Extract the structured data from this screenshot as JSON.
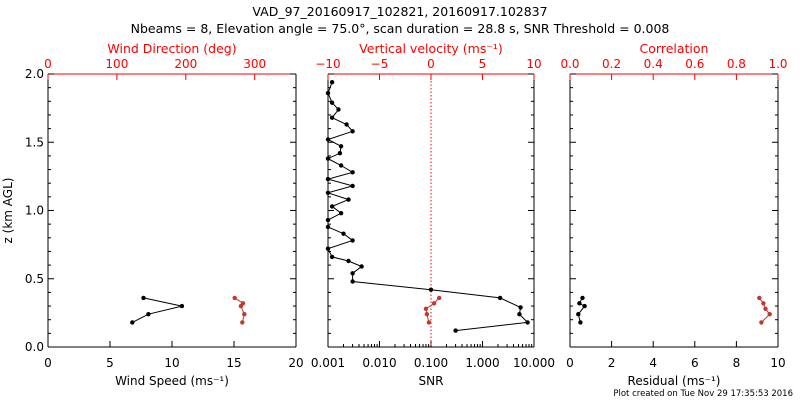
{
  "title_line1": "VAD_97_20160917_102821, 20160917.102837",
  "title_line2": "Nbeams = 8, Elevation angle = 75.0°, scan duration = 28.8 s, SNR Threshold = 0.008",
  "footer": "Plot created on Tue Nov 29 17:35:53 2016",
  "colors": {
    "axis": "#000000",
    "accent": "#ff0000",
    "red_series": "#c0392b",
    "black_series": "#000000"
  },
  "chart_data": [
    {
      "type": "line",
      "panel": "wind",
      "ylabel": "z (km AGL)",
      "ylim": [
        0,
        2
      ],
      "yticks": [
        0.0,
        0.5,
        1.0,
        1.5,
        2.0
      ],
      "ytick_labels": [
        "0.0",
        "0.5",
        "1.0",
        "1.5",
        "2.0"
      ],
      "bottom_axis": {
        "label": "Wind Speed (ms⁻¹)",
        "range": [
          0,
          20
        ],
        "ticks": [
          0,
          5,
          10,
          15,
          20
        ],
        "tick_labels": [
          "0",
          "5",
          "10",
          "15",
          "20"
        ]
      },
      "top_axis": {
        "label": "Wind Direction (deg)",
        "range": [
          0,
          360
        ],
        "ticks": [
          0,
          100,
          200,
          300
        ],
        "tick_labels": [
          "0",
          "100",
          "200",
          "300"
        ]
      },
      "series": [
        {
          "axis": "bottom",
          "color": "#000000",
          "x": [
            6.8,
            8.1,
            10.8,
            7.7
          ],
          "y": [
            0.18,
            0.24,
            0.3,
            0.36
          ]
        },
        {
          "axis": "top",
          "color": "#c0392b",
          "x": [
            282,
            285,
            280,
            283,
            271
          ],
          "y": [
            0.18,
            0.24,
            0.3,
            0.32,
            0.36
          ]
        }
      ]
    },
    {
      "type": "line",
      "panel": "snr",
      "ylim": [
        0,
        2
      ],
      "bottom_axis": {
        "label": "SNR",
        "scale": "log",
        "range": [
          0.001,
          10
        ],
        "ticks": [
          0.001,
          0.01,
          0.1,
          1,
          10
        ],
        "tick_labels": [
          "0.001",
          "0.010",
          "0.100",
          "1.000",
          "10.000"
        ]
      },
      "top_axis": {
        "label": "Vertical velocity (ms⁻¹)",
        "range": [
          -10,
          10
        ],
        "ticks": [
          -10,
          -5,
          0,
          5,
          10
        ],
        "tick_labels": [
          "−10",
          "−5",
          "0",
          "5",
          "10"
        ],
        "reference_line": 0
      },
      "series": [
        {
          "axis": "bottom",
          "color": "#000000",
          "x": [
            0.3,
            7.5,
            5.2,
            5.5,
            2.2,
            0.1,
            0.003,
            0.003,
            0.0045,
            0.0025,
            0.0012,
            0.001,
            0.003,
            0.002,
            0.001,
            0.001,
            0.0018,
            0.0012,
            0.0025,
            0.001,
            0.003,
            0.001,
            0.003,
            0.0018,
            0.001,
            0.0017,
            0.0018,
            0.001,
            0.003,
            0.0023,
            0.0012,
            0.0016,
            0.0012,
            0.001,
            0.0012
          ],
          "y": [
            0.12,
            0.18,
            0.24,
            0.29,
            0.36,
            0.42,
            0.48,
            0.54,
            0.59,
            0.63,
            0.66,
            0.72,
            0.78,
            0.83,
            0.88,
            0.93,
            0.98,
            1.03,
            1.08,
            1.13,
            1.18,
            1.23,
            1.28,
            1.33,
            1.38,
            1.42,
            1.47,
            1.52,
            1.58,
            1.63,
            1.68,
            1.74,
            1.79,
            1.86,
            1.94
          ]
        },
        {
          "axis": "top",
          "color": "#c0392b",
          "x": [
            -0.2,
            -0.4,
            -0.5,
            0.3,
            0.8
          ],
          "y": [
            0.18,
            0.24,
            0.28,
            0.32,
            0.36
          ]
        }
      ]
    },
    {
      "type": "line",
      "panel": "residual",
      "ylim": [
        0,
        2
      ],
      "bottom_axis": {
        "label": "Residual (ms⁻¹)",
        "range": [
          0,
          10
        ],
        "ticks": [
          0,
          2,
          4,
          6,
          8,
          10
        ],
        "tick_labels": [
          "0",
          "2",
          "4",
          "6",
          "8",
          "10"
        ]
      },
      "top_axis": {
        "label": "Correlation",
        "range": [
          0,
          1
        ],
        "ticks": [
          0,
          0.2,
          0.4,
          0.6,
          0.8,
          1.0
        ],
        "tick_labels": [
          "0.0",
          "0.2",
          "0.4",
          "0.6",
          "0.8",
          "1.0"
        ]
      },
      "series": [
        {
          "axis": "bottom",
          "color": "#000000",
          "x": [
            0.5,
            0.4,
            0.7,
            0.45,
            0.6
          ],
          "y": [
            0.18,
            0.24,
            0.3,
            0.32,
            0.36
          ]
        },
        {
          "axis": "top",
          "color": "#c0392b",
          "x": [
            0.92,
            0.96,
            0.94,
            0.93,
            0.91
          ],
          "y": [
            0.18,
            0.24,
            0.28,
            0.32,
            0.36
          ]
        }
      ]
    }
  ]
}
